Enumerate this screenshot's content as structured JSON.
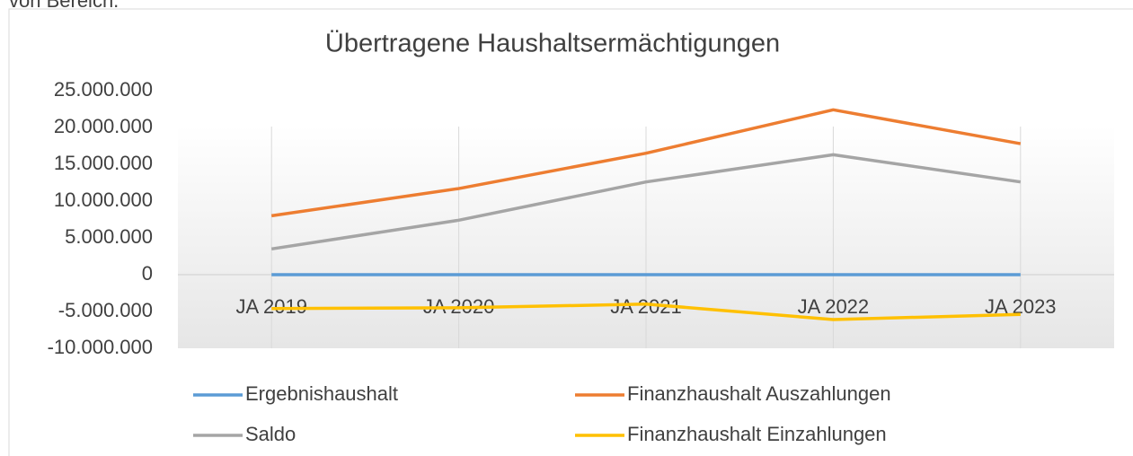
{
  "page_text": "von Bereich.",
  "chart_data": {
    "type": "line",
    "title": "Übertragene Haushaltsermächtigungen",
    "categories": [
      "JA 2019",
      "JA 2020",
      "JA 2021",
      "JA 2022",
      "JA 2023"
    ],
    "series": [
      {
        "name": "Ergebnishaushalt",
        "color": "#5b9bd5",
        "values": [
          0,
          0,
          0,
          0,
          0
        ]
      },
      {
        "name": "Finanzhaushalt Auszahlungen",
        "color": "#ed7d31",
        "values": [
          8000000,
          11700000,
          16500000,
          22400000,
          17800000
        ]
      },
      {
        "name": "Saldo",
        "color": "#a5a5a5",
        "values": [
          3500000,
          7400000,
          12600000,
          16300000,
          12600000
        ]
      },
      {
        "name": "Finanzhaushalt Einzahlungen",
        "color": "#ffc000",
        "values": [
          -4600000,
          -4500000,
          -4000000,
          -6100000,
          -5400000
        ]
      }
    ],
    "ylim": [
      -10000000,
      25000000
    ],
    "yticks": [
      {
        "value": 25000000,
        "label": "25.000.000"
      },
      {
        "value": 20000000,
        "label": "20.000.000"
      },
      {
        "value": 15000000,
        "label": "15.000.000"
      },
      {
        "value": 10000000,
        "label": "10.000.000"
      },
      {
        "value": 5000000,
        "label": "5.000.000"
      },
      0,
      {
        "value": -5000000,
        "label": "-5.000.000"
      },
      {
        "value": -10000000,
        "label": "-10.000.000"
      }
    ],
    "legend": "bottom"
  }
}
